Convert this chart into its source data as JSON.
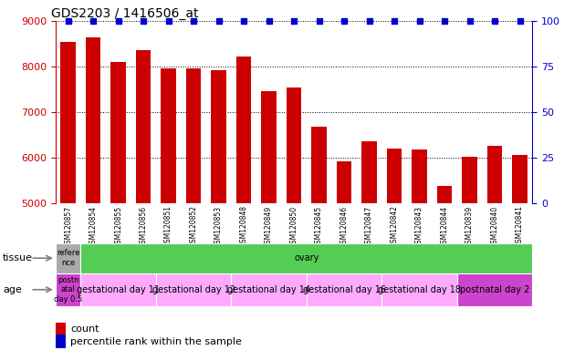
{
  "title": "GDS2203 / 1416506_at",
  "samples": [
    "GSM120857",
    "GSM120854",
    "GSM120855",
    "GSM120856",
    "GSM120851",
    "GSM120852",
    "GSM120853",
    "GSM120848",
    "GSM120849",
    "GSM120850",
    "GSM120845",
    "GSM120846",
    "GSM120847",
    "GSM120842",
    "GSM120843",
    "GSM120844",
    "GSM120839",
    "GSM120840",
    "GSM120841"
  ],
  "counts": [
    8550,
    8650,
    8100,
    8360,
    7950,
    7960,
    7920,
    8220,
    7460,
    7540,
    6680,
    5920,
    6360,
    6200,
    6170,
    5380,
    6020,
    6250,
    6050
  ],
  "percentile_rank": [
    100,
    100,
    100,
    100,
    100,
    100,
    100,
    100,
    100,
    100,
    100,
    100,
    100,
    100,
    100,
    100,
    100,
    100,
    100
  ],
  "bar_color": "#cc0000",
  "dot_color": "#0000cc",
  "ymin": 5000,
  "ymax": 9000,
  "yticks": [
    5000,
    6000,
    7000,
    8000,
    9000
  ],
  "y2min": 0,
  "y2max": 100,
  "y2ticks": [
    0,
    25,
    50,
    75,
    100
  ],
  "tissue_cells": [
    {
      "text": "refere\nnce",
      "color": "#aaaaaa",
      "span": 1
    },
    {
      "text": "ovary",
      "color": "#55cc55",
      "span": 18
    }
  ],
  "age_cells": [
    {
      "text": "postn\natal\nday 0.5",
      "color": "#cc44cc",
      "span": 1
    },
    {
      "text": "gestational day 11",
      "color": "#ffaaff",
      "span": 3
    },
    {
      "text": "gestational day 12",
      "color": "#ffaaff",
      "span": 3
    },
    {
      "text": "gestational day 14",
      "color": "#ffaaff",
      "span": 3
    },
    {
      "text": "gestational day 16",
      "color": "#ffaaff",
      "span": 3
    },
    {
      "text": "gestational day 18",
      "color": "#ffaaff",
      "span": 3
    },
    {
      "text": "postnatal day 2",
      "color": "#cc44cc",
      "span": 3
    }
  ],
  "legend": [
    {
      "color": "#cc0000",
      "label": "count"
    },
    {
      "color": "#0000cc",
      "label": "percentile rank within the sample"
    }
  ],
  "yaxis_color": "#cc0000",
  "y2axis_color": "#0000cc"
}
